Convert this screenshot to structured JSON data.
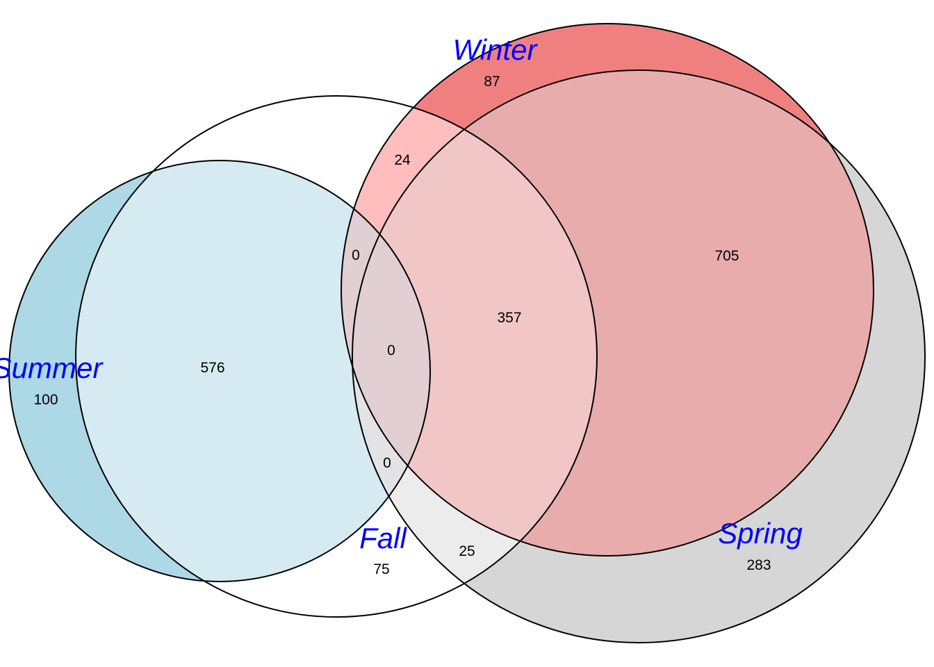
{
  "sets": [
    {
      "id": "winter",
      "label": "Winter",
      "color": "#f08080"
    },
    {
      "id": "summer",
      "label": "Summer",
      "color": "#add8e6"
    },
    {
      "id": "fall",
      "label": "Fall",
      "color": "#ffffff"
    },
    {
      "id": "spring",
      "label": "Spring",
      "color": "#d3d3d3"
    }
  ],
  "regions": [
    {
      "sets": [
        "winter"
      ],
      "count": "87"
    },
    {
      "sets": [
        "summer"
      ],
      "count": "100"
    },
    {
      "sets": [
        "fall"
      ],
      "count": "75"
    },
    {
      "sets": [
        "spring"
      ],
      "count": "283"
    },
    {
      "sets": [
        "winter",
        "fall"
      ],
      "count": "24"
    },
    {
      "sets": [
        "winter",
        "spring"
      ],
      "count": "705"
    },
    {
      "sets": [
        "summer",
        "fall"
      ],
      "count": "576"
    },
    {
      "sets": [
        "fall",
        "spring"
      ],
      "count": "25"
    },
    {
      "sets": [
        "winter",
        "fall",
        "spring"
      ],
      "count": "357"
    },
    {
      "sets": [
        "winter",
        "summer",
        "fall"
      ],
      "count": "0"
    },
    {
      "sets": [
        "summer",
        "fall",
        "spring"
      ],
      "count": "0"
    },
    {
      "sets": [
        "winter",
        "summer",
        "fall",
        "spring"
      ],
      "count": "0"
    }
  ]
}
